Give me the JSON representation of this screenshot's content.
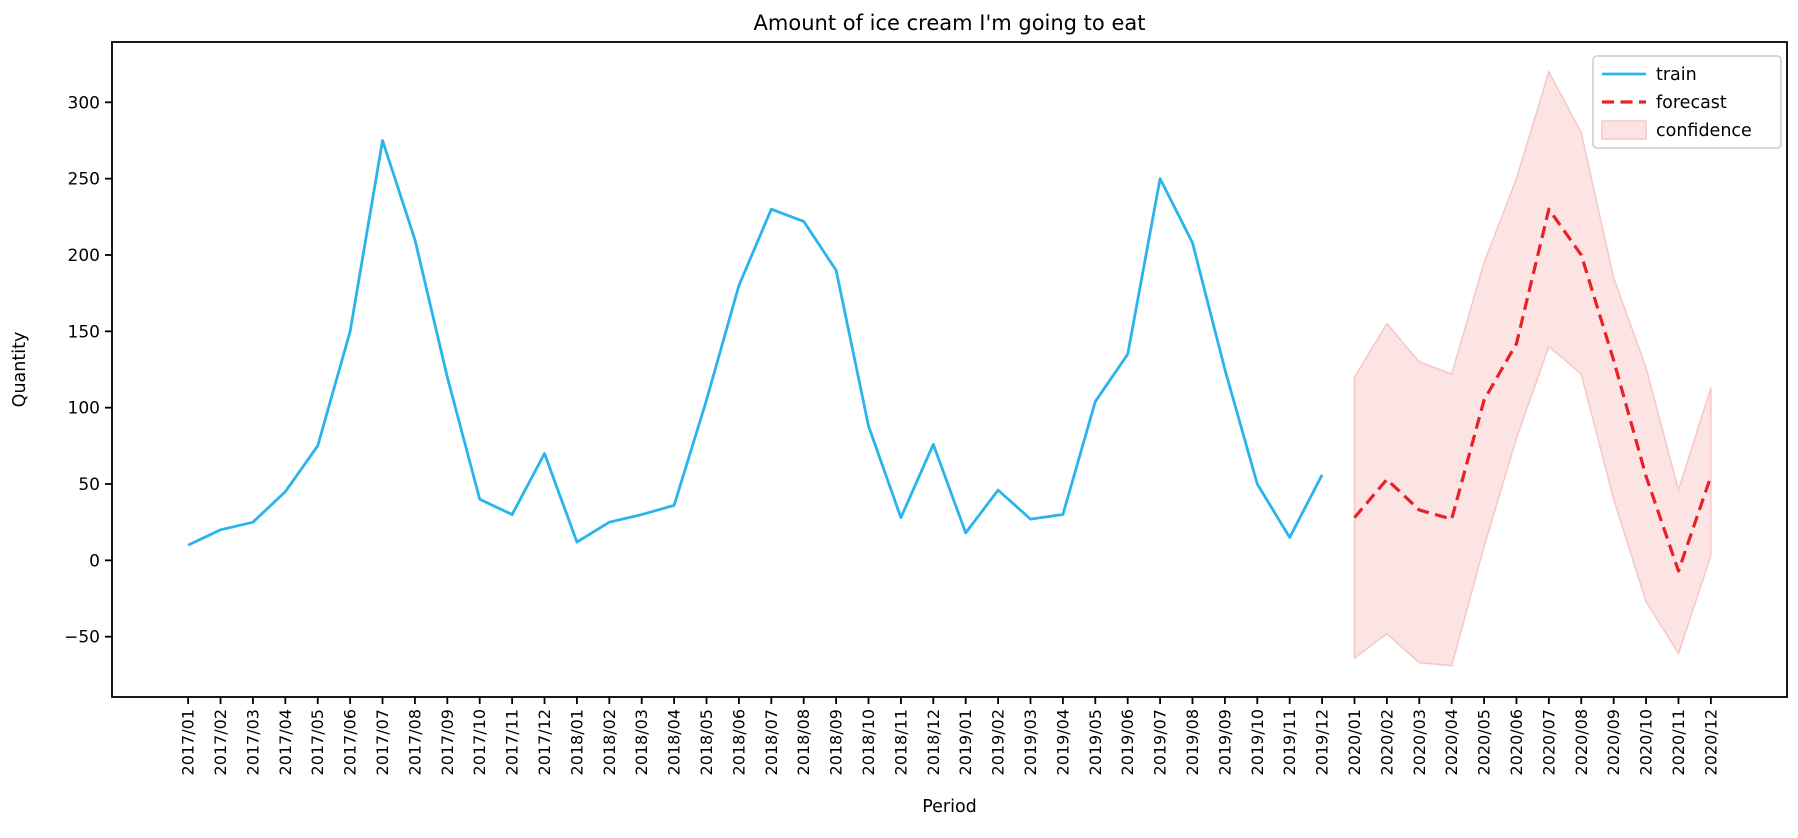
{
  "figure": {
    "title": "Amount of ice cream I'm going to eat",
    "xlabel": "Period",
    "ylabel": "Quantity"
  },
  "chart_data": {
    "type": "line",
    "title": "Amount of ice cream I'm going to eat",
    "xlabel": "Period",
    "ylabel": "Quantity",
    "grid": false,
    "legend_position": "upper right",
    "legend": [
      "train",
      "forecast",
      "confidence"
    ],
    "colors": {
      "train": "#29b4ec",
      "forecast": "#e92128",
      "confidence_fill": "#fce4e4",
      "confidence_edge": "#f7c6c6",
      "axis": "#000000",
      "legend_border": "#cccccc"
    },
    "xlim": [
      -2.35,
      49.35
    ],
    "ylim": [
      -89.5,
      339.5
    ],
    "y_ticks": [
      -50,
      0,
      50,
      100,
      150,
      200,
      250,
      300
    ],
    "y_tick_labels": [
      "−50",
      "0",
      "50",
      "100",
      "150",
      "200",
      "250",
      "300"
    ],
    "x_tick_labels": [
      "2017/01",
      "2017/02",
      "2017/03",
      "2017/04",
      "2017/05",
      "2017/06",
      "2017/07",
      "2017/08",
      "2017/09",
      "2017/10",
      "2017/11",
      "2017/12",
      "2018/01",
      "2018/02",
      "2018/03",
      "2018/04",
      "2018/05",
      "2018/06",
      "2018/07",
      "2018/08",
      "2018/09",
      "2018/10",
      "2018/11",
      "2018/12",
      "2019/01",
      "2019/02",
      "2019/03",
      "2019/04",
      "2019/05",
      "2019/06",
      "2019/07",
      "2019/08",
      "2019/09",
      "2019/10",
      "2019/11",
      "2019/12",
      "2020/01",
      "2020/02",
      "2020/03",
      "2020/04",
      "2020/05",
      "2020/06",
      "2020/07",
      "2020/08",
      "2020/09",
      "2020/10",
      "2020/11",
      "2020/12"
    ],
    "series": [
      {
        "name": "train",
        "kind": "line",
        "style": "solid",
        "x_start_index": 0,
        "values": [
          10,
          20,
          25,
          45,
          75,
          150,
          275,
          210,
          120,
          40,
          30,
          70,
          12,
          25,
          30,
          36,
          105,
          180,
          230,
          222,
          190,
          88,
          28,
          76,
          18,
          46,
          27,
          30,
          104,
          135,
          250,
          208,
          125,
          50,
          15,
          56
        ]
      },
      {
        "name": "forecast",
        "kind": "line",
        "style": "dashed",
        "x_start_index": 36,
        "values": [
          28,
          53,
          33,
          27,
          105,
          142,
          230,
          200,
          131,
          55,
          -7,
          55
        ]
      },
      {
        "name": "confidence",
        "kind": "band",
        "x_start_index": 36,
        "upper": [
          120,
          155,
          130,
          122,
          195,
          250,
          320,
          280,
          185,
          126,
          46,
          113
        ],
        "lower": [
          -64,
          -48,
          -67,
          -69,
          9,
          80,
          140,
          122,
          40,
          -27,
          -61,
          3
        ]
      }
    ]
  }
}
